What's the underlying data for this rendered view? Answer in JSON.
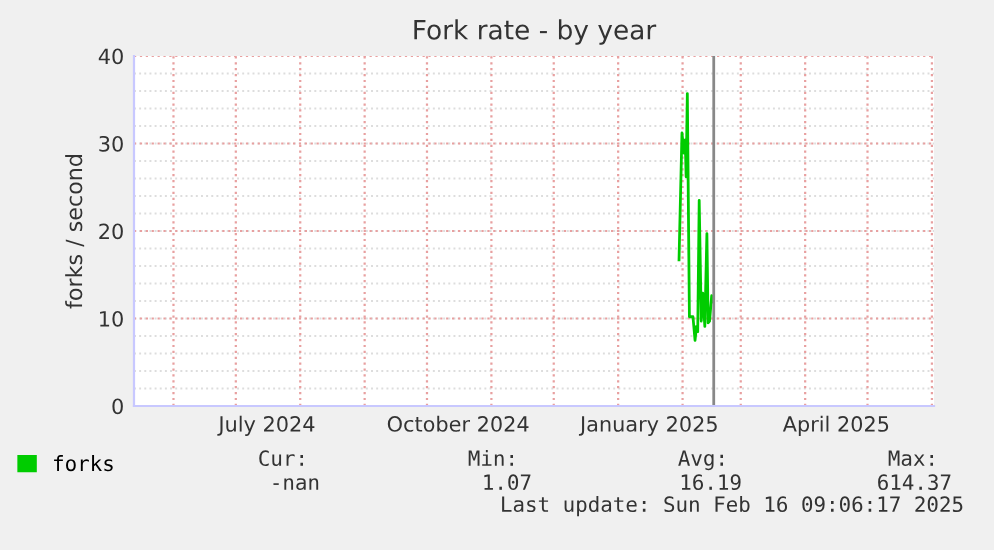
{
  "chart_data": {
    "type": "line",
    "title": "Fork rate - by year",
    "ylabel": "forks / second",
    "x": [
      "2025-01-30T07:00",
      "2025-01-31T17:00",
      "2025-02-01T17:00",
      "2025-02-02T07:00",
      "2025-02-02T17:00",
      "2025-02-03T07:00",
      "2025-02-04T07:00",
      "2025-02-06T00:00",
      "2025-02-07T00:00",
      "2025-02-07T17:00",
      "2025-02-08T07:00",
      "2025-02-09T00:00",
      "2025-02-10T00:00",
      "2025-02-10T17:00",
      "2025-02-11T17:00",
      "2025-02-12T17:00",
      "2025-02-13T07:00",
      "2025-02-14T00:00",
      "2025-02-15T00:00",
      "2025-02-15T17:00"
    ],
    "series": [
      {
        "name": "forks",
        "color": "#00cc00",
        "values": [
          16.7,
          31.2,
          28.9,
          30.4,
          26.2,
          35.7,
          10.2,
          10.2,
          7.5,
          9.1,
          8.5,
          23.5,
          9.7,
          12.9,
          9.1,
          19.7,
          9.5,
          9.7,
          12.6,
          11.9
        ]
      }
    ],
    "xlim": [
      "2024-05-13",
      "2025-06-02"
    ],
    "xticks": [
      {
        "value": "2024-07-16",
        "label": "July 2024"
      },
      {
        "value": "2024-10-16",
        "label": "October 2024"
      },
      {
        "value": "2025-01-16",
        "label": "January 2025"
      },
      {
        "value": "2025-04-16",
        "label": "April 2025"
      }
    ],
    "ylim": [
      0,
      40
    ],
    "yticks": [
      0,
      10,
      20,
      30,
      40
    ],
    "ref_lines": [
      {
        "axis": "x",
        "value": "2025-02-16",
        "color": "#888888"
      }
    ],
    "grid": true,
    "legend": "bottom left",
    "marker": "none",
    "line_style": "solid",
    "annotations": [
      "Cur:",
      "Min:",
      "Avg:",
      "Max:",
      "-nan",
      "1.07",
      "16.19",
      "614.37",
      "Last update: Sun Feb 16 09:06:17 2025"
    ]
  }
}
